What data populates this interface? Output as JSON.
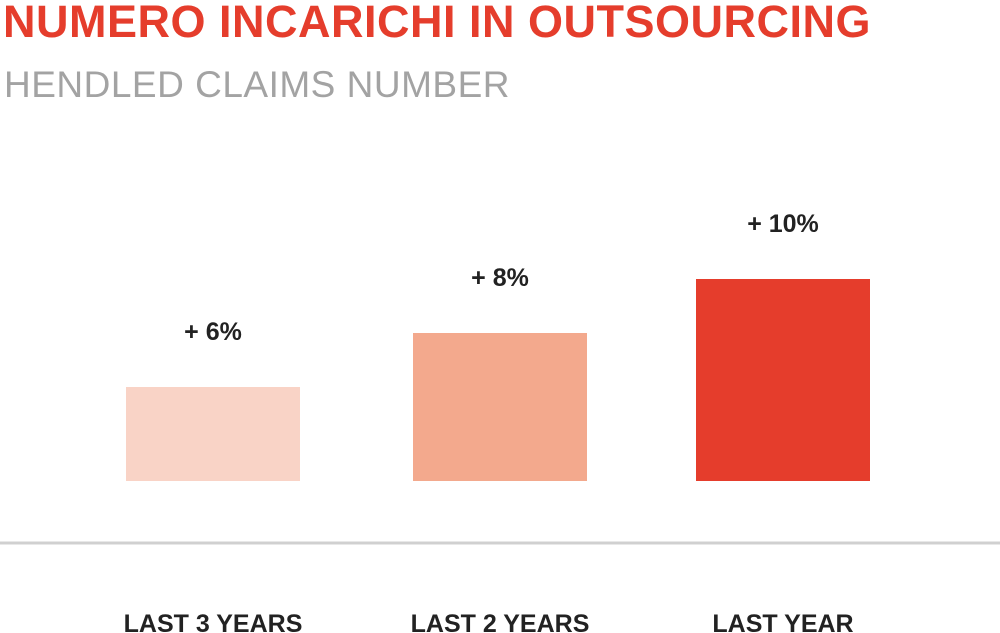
{
  "header": {
    "title": "NUMERO INCARICHI IN OUTSOURCING",
    "subtitle": "HENDLED CLAIMS NUMBER"
  },
  "colors": {
    "title": "#e53d2c",
    "subtitle": "#a3a3a3",
    "baseline": "#d0d0d0"
  },
  "chart_data": {
    "type": "bar",
    "title": "NUMERO INCARICHI IN OUTSOURCING",
    "subtitle": "HENDLED CLAIMS NUMBER",
    "categories": [
      "LAST 3 YEARS",
      "LAST 2 YEARS",
      "LAST YEAR"
    ],
    "values": [
      6,
      8,
      10
    ],
    "value_labels": [
      "+ 6%",
      "+ 8%",
      "+ 10%"
    ],
    "bar_colors": [
      "#f9d3c6",
      "#f3a98d",
      "#e53d2c"
    ],
    "unit": "%",
    "ylim": [
      0,
      10
    ],
    "grid": false,
    "legend": "none"
  }
}
